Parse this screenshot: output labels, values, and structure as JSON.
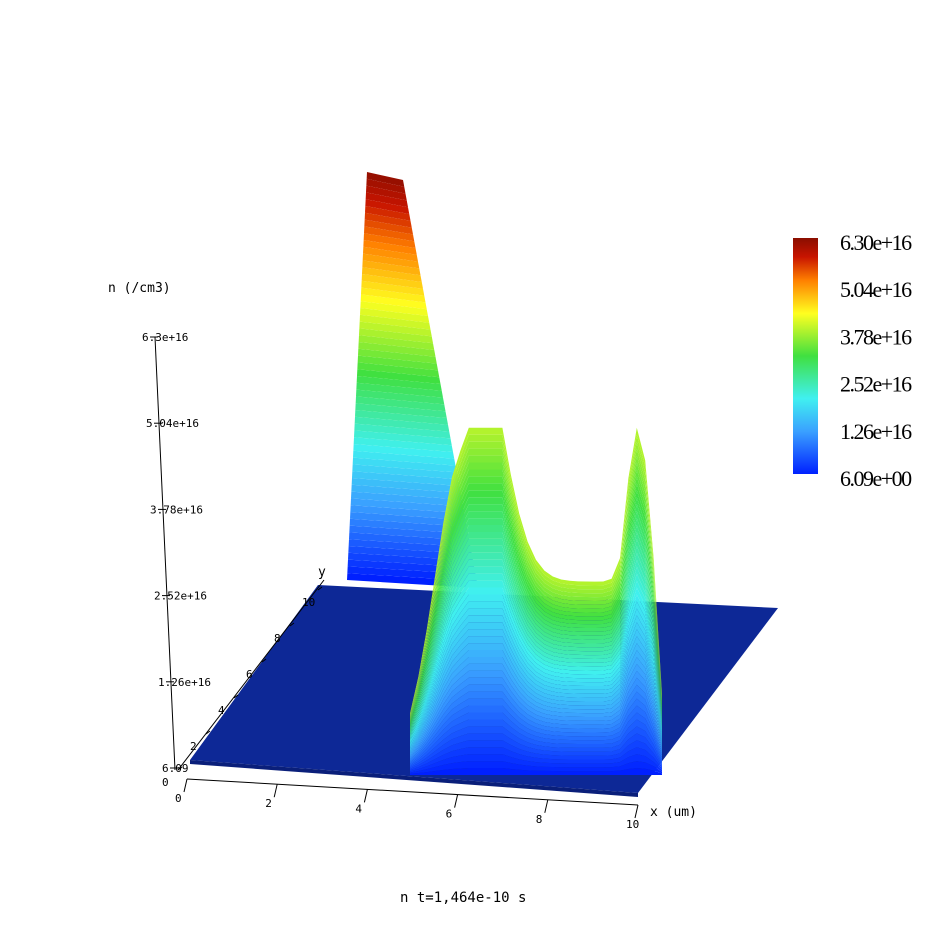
{
  "chart_data": {
    "type": "surface3d",
    "z_label": "n (/cm3)",
    "x_label": "x (um)",
    "y_label": "y",
    "caption": "n t=1,464e-10 s",
    "x_ticks": [
      "0",
      "2",
      "4",
      "6",
      "8",
      "10"
    ],
    "y_ticks": [
      "0",
      "2",
      "4",
      "6",
      "8",
      "10"
    ],
    "z_ticks": [
      "6.09",
      "1.26e+16",
      "2.52e+16",
      "3.78e+16",
      "5.04e+16",
      "6.3e+16"
    ],
    "colorbar": {
      "labels": [
        "6.30e+16",
        "5.04e+16",
        "3.78e+16",
        "2.52e+16",
        "1.26e+16",
        "6.09e+00"
      ],
      "colors": [
        "#0020ff",
        "#3aa0ff",
        "#40f0f0",
        "#40e040",
        "#ffff20",
        "#ff8000",
        "#c81400",
        "#8a0e00"
      ]
    },
    "x_range": [
      0,
      10
    ],
    "y_range": [
      0,
      10
    ],
    "z_range": [
      6.09,
      6.3e+16
    ],
    "peaks": [
      {
        "x": 2.0,
        "value": 6.3e+16
      },
      {
        "x": 5.0,
        "value": 3.7e+16
      },
      {
        "x": 8.9,
        "value": 3.55e+16
      }
    ],
    "plateau_value": 2.9e+16,
    "background_value": 6.09
  }
}
